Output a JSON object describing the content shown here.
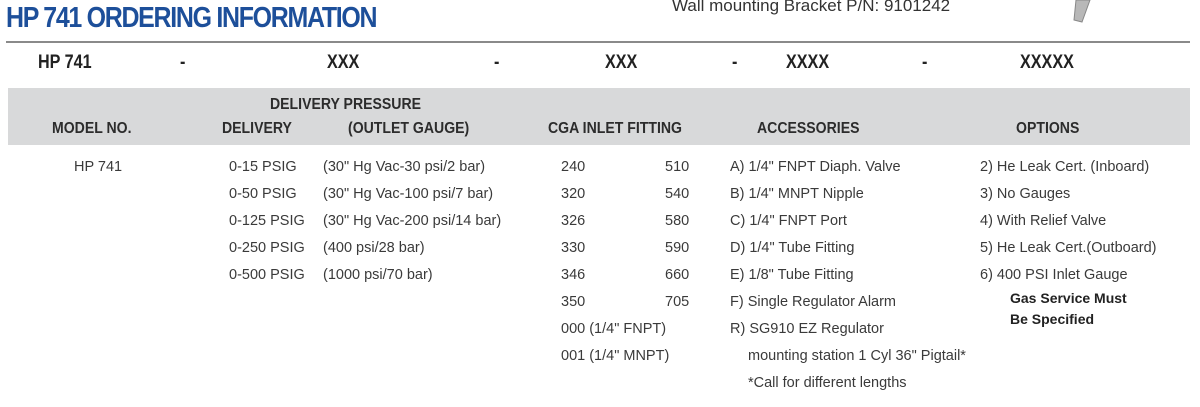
{
  "title": "HP 741 ORDERING INFORMATION",
  "bracket_text": "Wall mounting Bracket P/N: 9101242",
  "code": {
    "model": "HP 741",
    "sep": "-",
    "delivery": "XXX",
    "cga": "XXX",
    "accessories": "XXXX",
    "options": "XXXXX"
  },
  "headers": {
    "model": "MODEL NO.",
    "delivery_pressure": "DELIVERY PRESSURE",
    "delivery": "DELIVERY",
    "outlet_gauge": "(OUTLET GAUGE)",
    "cga": "CGA INLET FITTING",
    "accessories": "ACCESSORIES",
    "options": "OPTIONS"
  },
  "model": "HP 741",
  "delivery": [
    "0-15 PSIG",
    "0-50 PSIG",
    "0-125 PSIG",
    "0-250 PSIG",
    "0-500 PSIG"
  ],
  "gauge": [
    "(30\" Hg Vac-30 psi/2 bar)",
    "(30\" Hg Vac-100 psi/7 bar)",
    "(30\" Hg Vac-200 psi/14 bar)",
    "(400 psi/28 bar)",
    "(1000 psi/70 bar)"
  ],
  "cga_left": [
    "240",
    "320",
    "326",
    "330",
    "346",
    "350",
    "000 (1/4\" FNPT)",
    "001 (1/4\" MNPT)"
  ],
  "cga_right": [
    "510",
    "540",
    "580",
    "590",
    "660",
    "705"
  ],
  "accessories": [
    "A) 1/4\" FNPT Diaph. Valve",
    "B) 1/4\" MNPT Nipple",
    "C) 1/4\" FNPT Port",
    "D) 1/4\" Tube Fitting",
    "E) 1/8\" Tube Fitting",
    "F) Single Regulator Alarm",
    "R) SG910 EZ Regulator"
  ],
  "accessories_notes": [
    "mounting station 1 Cyl 36\" Pigtail*",
    "*Call for different lengths"
  ],
  "options": [
    "2) He Leak Cert. (Inboard)",
    "3) No Gauges",
    "4) With Relief Valve",
    "5) He Leak Cert.(Outboard)",
    "6) 400 PSI Inlet Gauge"
  ],
  "options_note": [
    "Gas Service Must",
    "Be Specified"
  ]
}
